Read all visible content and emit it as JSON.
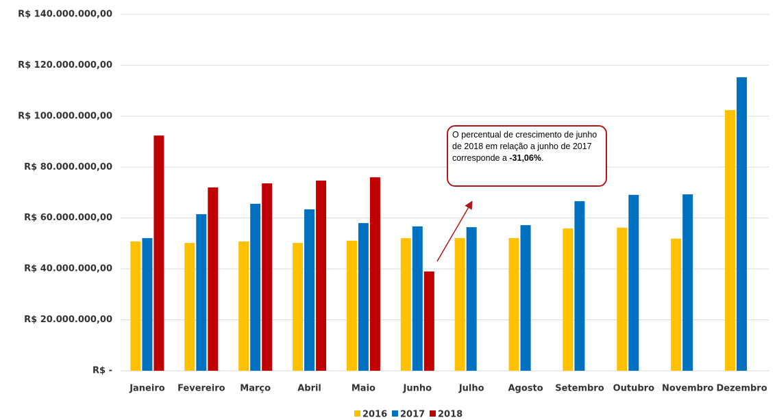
{
  "chart_data": {
    "type": "bar",
    "categories": [
      "Janeiro",
      "Fevereiro",
      "Março",
      "Abril",
      "Maio",
      "Junho",
      "Julho",
      "Agosto",
      "Setembro",
      "Outubro",
      "Novembro",
      "Dezembro"
    ],
    "series": [
      {
        "name": "2016",
        "color": "#ffc000",
        "values": [
          50800000,
          50200000,
          50800000,
          50200000,
          51100000,
          52100000,
          52100000,
          52100000,
          55900000,
          56200000,
          51900000,
          102400000
        ]
      },
      {
        "name": "2017",
        "color": "#0070c0",
        "values": [
          52100000,
          61500000,
          65600000,
          63400000,
          58000000,
          56700000,
          56400000,
          57200000,
          66600000,
          69100000,
          69300000,
          115300000
        ]
      },
      {
        "name": "2018",
        "color": "#c00000",
        "values": [
          92400000,
          72000000,
          73600000,
          74700000,
          76000000,
          39000000,
          null,
          null,
          null,
          null,
          null,
          null
        ]
      }
    ],
    "ylim": [
      0,
      140000000
    ],
    "yticks": [
      {
        "value": 0,
        "label": "R$ -"
      },
      {
        "value": 20000000,
        "label": "R$ 20.000.000,00"
      },
      {
        "value": 40000000,
        "label": "R$ 40.000.000,00"
      },
      {
        "value": 60000000,
        "label": "R$ 60.000.000,00"
      },
      {
        "value": 80000000,
        "label": "R$ 80.000.000,00"
      },
      {
        "value": 100000000,
        "label": "R$ 100.000.000,00"
      },
      {
        "value": 120000000,
        "label": "R$ 120.000.000,00"
      },
      {
        "value": 140000000,
        "label": "R$ 140.000.000,00"
      }
    ],
    "grid": true,
    "legend": "bottom",
    "annotation": {
      "text": "O percentual de crescimento de junho de 2018 em relação a junho de 2017 corresponde a ",
      "bold": "-31,06%",
      "end": "."
    }
  }
}
